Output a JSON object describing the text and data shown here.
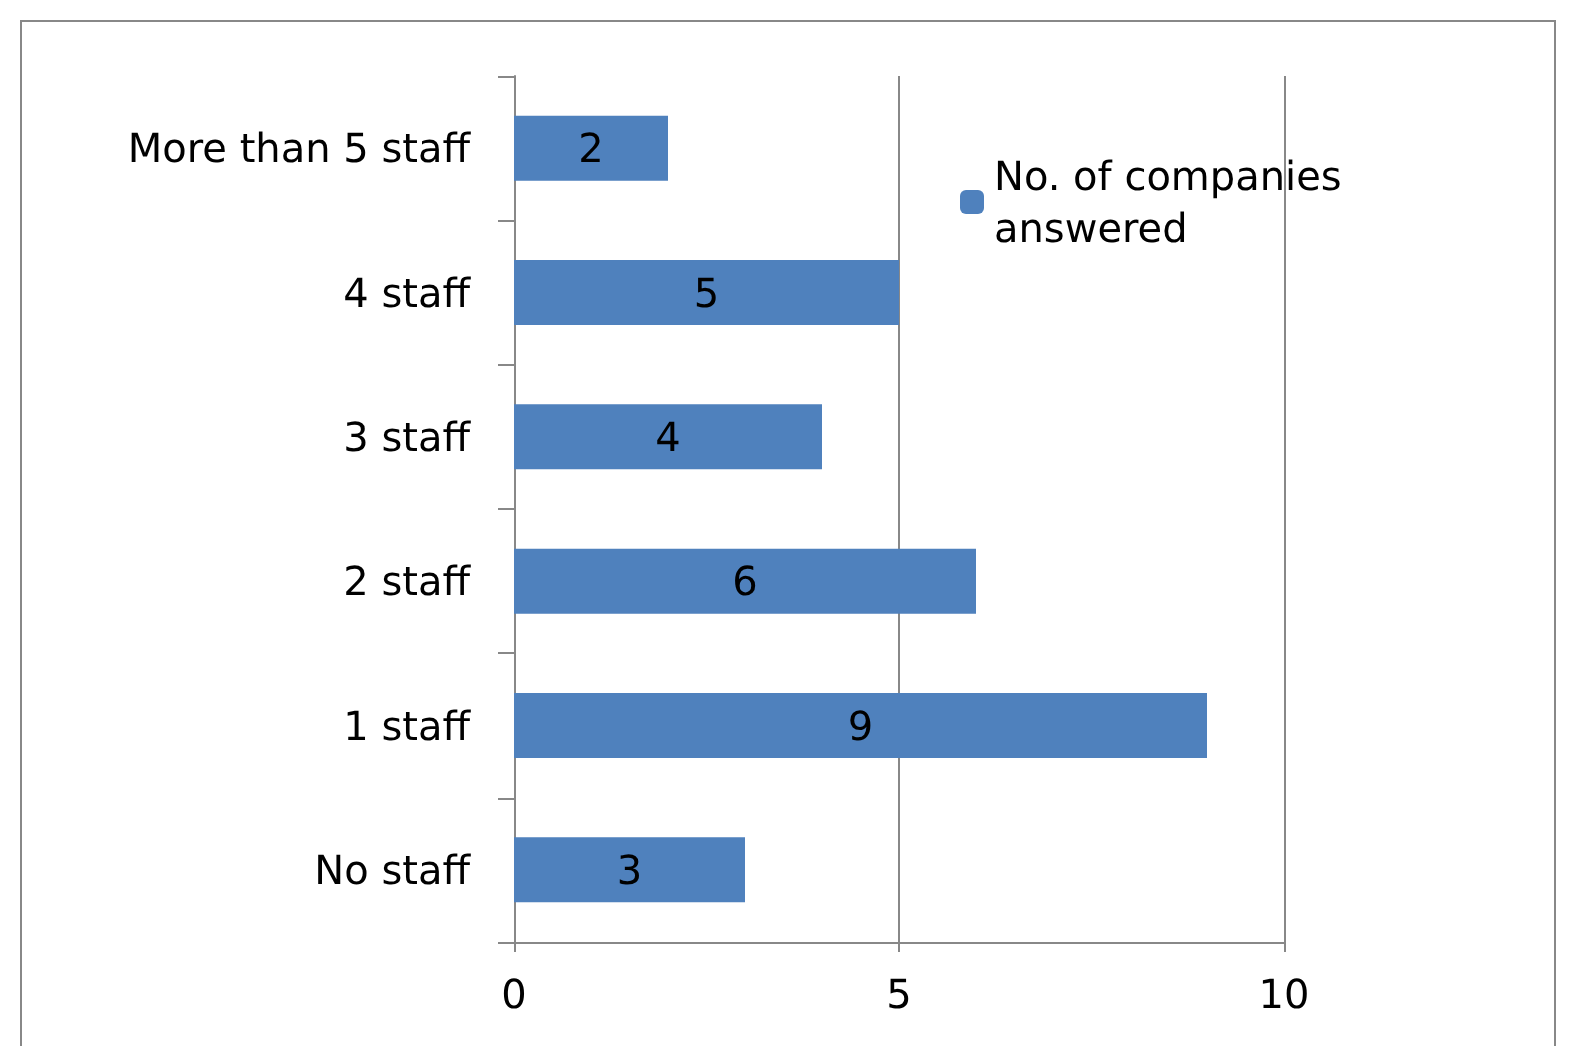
{
  "chart_data": {
    "type": "bar",
    "orientation": "horizontal",
    "categories": [
      "More than 5 staff",
      "4 staff",
      "3 staff",
      "2 staff",
      "1 staff",
      "No staff"
    ],
    "series": [
      {
        "name": "No. of companies answered",
        "color": "#4f81bd",
        "values": [
          2,
          5,
          4,
          6,
          9,
          3
        ]
      }
    ],
    "xlim": [
      0,
      10
    ],
    "xticks": [
      0,
      5,
      10
    ],
    "grid": "x",
    "legend": "top right",
    "data_labels": true
  }
}
